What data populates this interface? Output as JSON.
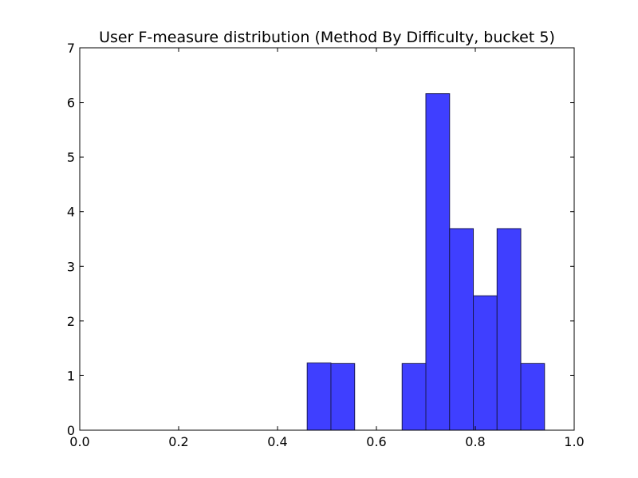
{
  "chart_data": {
    "type": "bar",
    "title": "User F-measure distribution (Method By Difficulty, bucket 5)",
    "xlabel": "",
    "ylabel": "",
    "xlim": [
      0.0,
      1.0
    ],
    "ylim": [
      0,
      7
    ],
    "x_ticks": [
      "0.0",
      "0.2",
      "0.4",
      "0.6",
      "0.8",
      "1.0"
    ],
    "y_ticks": [
      "0",
      "1",
      "2",
      "3",
      "4",
      "5",
      "6",
      "7"
    ],
    "bins": [
      {
        "start": 0.46,
        "end": 0.508,
        "value": 1.23
      },
      {
        "start": 0.508,
        "end": 0.556,
        "value": 1.22
      },
      {
        "start": 0.652,
        "end": 0.7,
        "value": 1.22
      },
      {
        "start": 0.7,
        "end": 0.748,
        "value": 6.16
      },
      {
        "start": 0.748,
        "end": 0.796,
        "value": 3.69
      },
      {
        "start": 0.796,
        "end": 0.844,
        "value": 2.46
      },
      {
        "start": 0.844,
        "end": 0.892,
        "value": 3.69
      },
      {
        "start": 0.892,
        "end": 0.94,
        "value": 1.22
      }
    ],
    "grid": false,
    "colors": {
      "bar_fill": "#3f3fff",
      "bar_edge": "#1a1a55",
      "axes": "#000000"
    }
  }
}
